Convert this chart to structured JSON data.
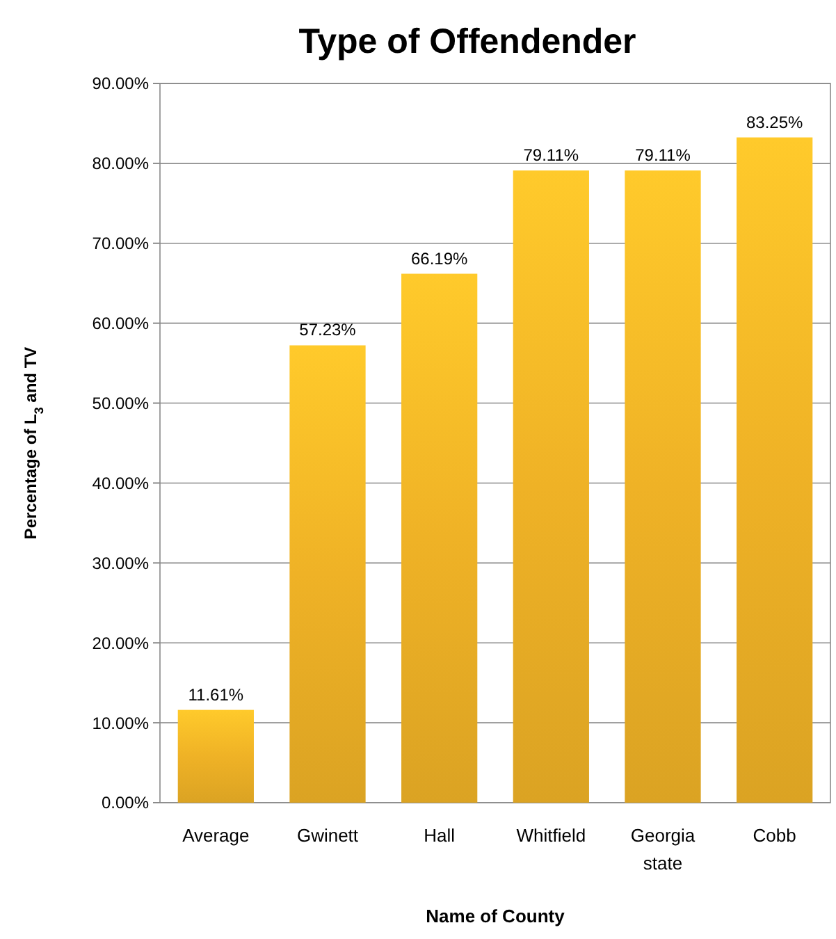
{
  "chart_data": {
    "type": "bar",
    "title": "Type of Offendender",
    "xlabel": "Name of County",
    "ylabel": "Percentage of L$_{3}$ and TV",
    "categories": [
      "Average",
      "Gwinett",
      "Hall",
      "Whitfield",
      "Georgia state",
      "Cobb"
    ],
    "values": [
      11.61,
      57.23,
      66.19,
      79.11,
      79.11,
      83.25
    ],
    "value_labels": [
      "11.61%",
      "57.23%",
      "66.19%",
      "79.11%",
      "79.11%",
      "83.25%"
    ],
    "color": "#efb226",
    "ylim": [
      0,
      90
    ],
    "yticks": [
      {
        "value": 0,
        "label": "0.00%"
      },
      {
        "value": 10,
        "label": "10.00%"
      },
      {
        "value": 20,
        "label": "20.00%"
      },
      {
        "value": 30,
        "label": "30.00%"
      },
      {
        "value": 40,
        "label": "40.00%"
      },
      {
        "value": 50,
        "label": "50.00%"
      },
      {
        "value": 60,
        "label": "60.00%"
      },
      {
        "value": 70,
        "label": "70.00%"
      },
      {
        "value": 80,
        "label": "80.00%"
      },
      {
        "value": 90,
        "label": "90.00%"
      }
    ],
    "grid": "y"
  }
}
